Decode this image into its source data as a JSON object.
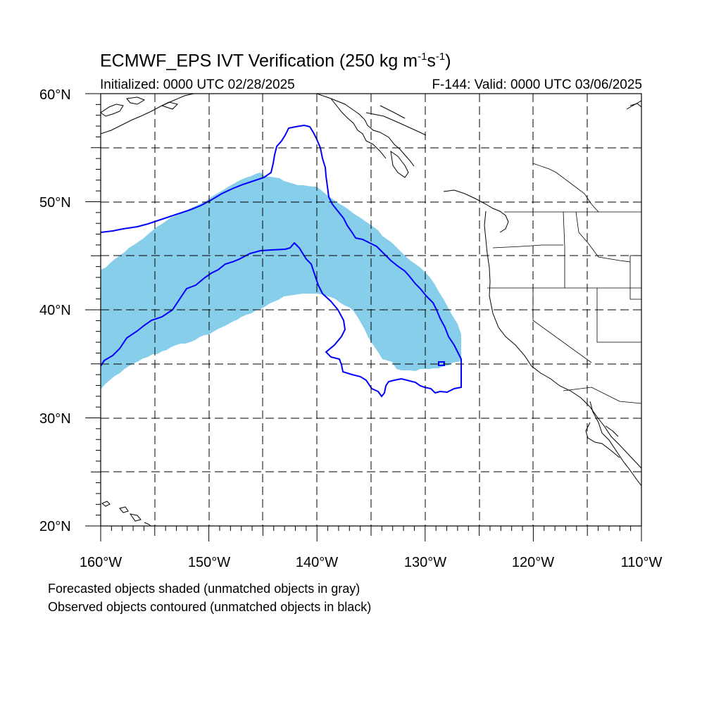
{
  "title": {
    "main": "ECMWF_EPS IVT Verification (250 kg m",
    "sup1": "-1",
    "mid": "s",
    "sup2": "-1",
    "end": ")"
  },
  "subtitle_left": "Initialized: 0000 UTC 02/28/2025",
  "subtitle_right": "F-144: Valid: 0000 UTC 03/06/2025",
  "lat_labels": [
    "60°N",
    "50°N",
    "40°N",
    "30°N",
    "20°N"
  ],
  "lon_labels": [
    "160°W",
    "150°W",
    "140°W",
    "130°W",
    "120°W",
    "110°W"
  ],
  "notes": {
    "line1": "Forecasted objects shaded (unmatched objects in gray)",
    "line2": "Observed objects contoured (unmatched objects in black)"
  },
  "colors": {
    "forecast_fill": "#87ceeb",
    "observed_contour": "#0000ff",
    "coastline": "#000000",
    "grid": "#000000"
  },
  "map_extent": {
    "lon_min": -160,
    "lon_max": -110,
    "lat_min": 20,
    "lat_max": 60
  }
}
